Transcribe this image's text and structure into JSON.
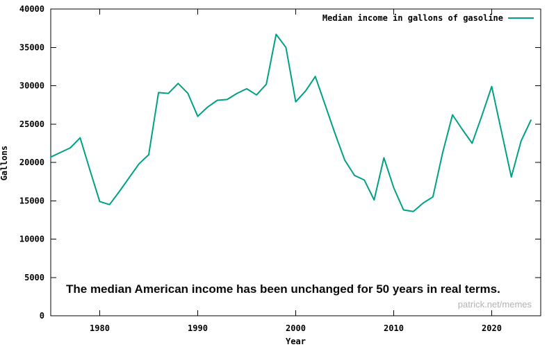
{
  "chart_data": {
    "type": "line",
    "title": "",
    "xlabel": "Year",
    "ylabel": "Gallons",
    "xlim": [
      1975,
      2025
    ],
    "ylim": [
      0,
      40000
    ],
    "xticks": [
      1980,
      1990,
      2000,
      2010,
      2020
    ],
    "yticks": [
      0,
      5000,
      10000,
      15000,
      20000,
      25000,
      30000,
      35000,
      40000
    ],
    "grid": false,
    "legend_position": "top-right-inside",
    "line_color": "#00a183",
    "x": [
      1975,
      1976,
      1977,
      1978,
      1979,
      1980,
      1981,
      1982,
      1983,
      1984,
      1985,
      1986,
      1987,
      1988,
      1989,
      1990,
      1991,
      1992,
      1993,
      1994,
      1995,
      1996,
      1997,
      1998,
      1999,
      2000,
      2001,
      2002,
      2003,
      2004,
      2005,
      2006,
      2007,
      2008,
      2009,
      2010,
      2011,
      2012,
      2013,
      2014,
      2015,
      2016,
      2017,
      2018,
      2019,
      2020,
      2021,
      2022,
      2023,
      2024
    ],
    "series": [
      {
        "name": "Median income in gallons of gasoline",
        "values": [
          20700,
          21300,
          21900,
          23200,
          19000,
          14900,
          14500,
          16200,
          18000,
          19800,
          21000,
          29100,
          29000,
          30300,
          29000,
          26000,
          27200,
          28100,
          28200,
          29000,
          29600,
          28800,
          30200,
          36700,
          35000,
          27900,
          29300,
          31200,
          27500,
          23800,
          20300,
          18300,
          17700,
          15100,
          20600,
          16700,
          13800,
          13600,
          14700,
          15500,
          21300,
          26200,
          24300,
          22500,
          26100,
          29900,
          24000,
          18100,
          22800,
          25500
        ]
      }
    ],
    "annotation": "The median American income has been unchanged for 50 years in real terms.",
    "watermark": "patrick.net/memes"
  }
}
